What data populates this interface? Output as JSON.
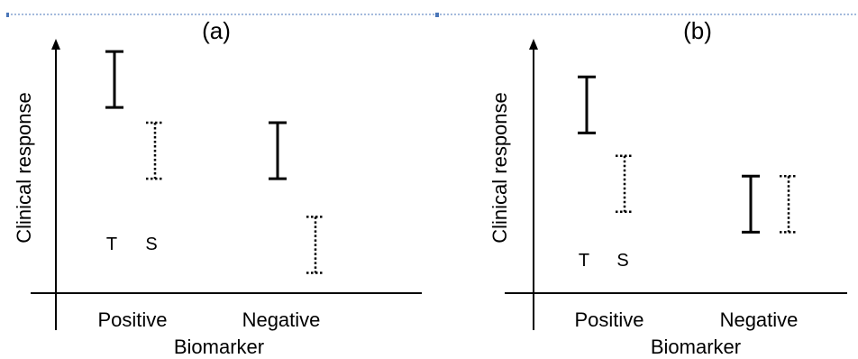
{
  "panels": [
    {
      "id": "a",
      "title": "(a)",
      "ylabel": "Clinical response",
      "xlabel": "Biomarker",
      "categories": [
        "Positive",
        "Negative"
      ],
      "legend": [
        "T",
        "S"
      ],
      "intervals": [
        {
          "category": "Positive",
          "group": "T",
          "style": "solid",
          "low": 0.73,
          "high": 0.95
        },
        {
          "category": "Positive",
          "group": "S",
          "style": "dotted",
          "low": 0.45,
          "high": 0.67
        },
        {
          "category": "Negative",
          "group": "T",
          "style": "solid",
          "low": 0.45,
          "high": 0.67
        },
        {
          "category": "Negative",
          "group": "S",
          "style": "dotted",
          "low": 0.08,
          "high": 0.3
        }
      ]
    },
    {
      "id": "b",
      "title": "(b)",
      "ylabel": "Clinical response",
      "xlabel": "Biomarker",
      "categories": [
        "Positive",
        "Negative"
      ],
      "legend": [
        "T",
        "S"
      ],
      "intervals": [
        {
          "category": "Positive",
          "group": "T",
          "style": "solid",
          "low": 0.63,
          "high": 0.85
        },
        {
          "category": "Positive",
          "group": "S",
          "style": "dotted",
          "low": 0.32,
          "high": 0.54
        },
        {
          "category": "Negative",
          "group": "T",
          "style": "solid",
          "low": 0.24,
          "high": 0.46
        },
        {
          "category": "Negative",
          "group": "S",
          "style": "dotted",
          "low": 0.24,
          "high": 0.46
        }
      ]
    }
  ],
  "colors": {
    "ink": "#000000",
    "border": "#4a76b8"
  }
}
